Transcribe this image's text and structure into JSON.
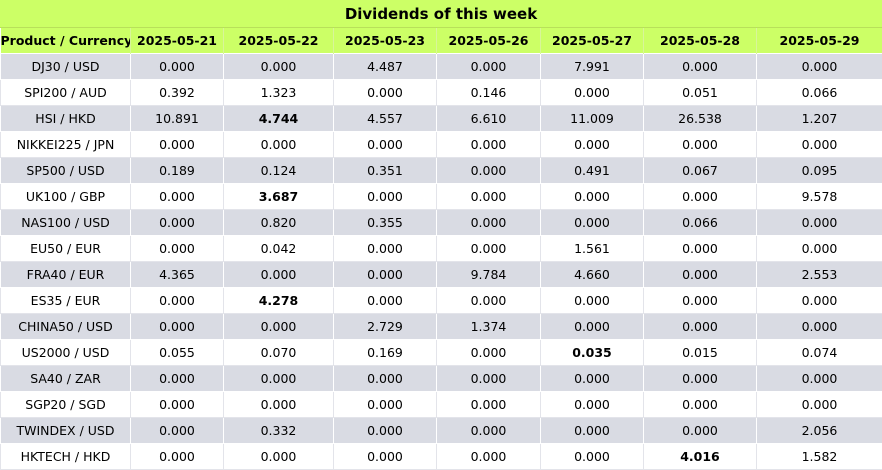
{
  "title": "Dividends of this week",
  "header": {
    "product_label": "Product / Currency",
    "dates": [
      "2025-05-21",
      "2025-05-22",
      "2025-05-23",
      "2025-05-26",
      "2025-05-27",
      "2025-05-28",
      "2025-05-29"
    ]
  },
  "rows": [
    {
      "product": "DJ30 / USD",
      "values": [
        "0.000",
        "0.000",
        "4.487",
        "0.000",
        "7.991",
        "0.000",
        "0.000"
      ],
      "bold": []
    },
    {
      "product": "SPI200 / AUD",
      "values": [
        "0.392",
        "1.323",
        "0.000",
        "0.146",
        "0.000",
        "0.051",
        "0.066"
      ],
      "bold": []
    },
    {
      "product": "HSI / HKD",
      "values": [
        "10.891",
        "4.744",
        "4.557",
        "6.610",
        "11.009",
        "26.538",
        "1.207"
      ],
      "bold": [
        1
      ]
    },
    {
      "product": "NIKKEI225 / JPN",
      "values": [
        "0.000",
        "0.000",
        "0.000",
        "0.000",
        "0.000",
        "0.000",
        "0.000"
      ],
      "bold": []
    },
    {
      "product": "SP500 / USD",
      "values": [
        "0.189",
        "0.124",
        "0.351",
        "0.000",
        "0.491",
        "0.067",
        "0.095"
      ],
      "bold": []
    },
    {
      "product": "UK100 / GBP",
      "values": [
        "0.000",
        "3.687",
        "0.000",
        "0.000",
        "0.000",
        "0.000",
        "9.578"
      ],
      "bold": [
        1
      ]
    },
    {
      "product": "NAS100 / USD",
      "values": [
        "0.000",
        "0.820",
        "0.355",
        "0.000",
        "0.000",
        "0.066",
        "0.000"
      ],
      "bold": []
    },
    {
      "product": "EU50 / EUR",
      "values": [
        "0.000",
        "0.042",
        "0.000",
        "0.000",
        "1.561",
        "0.000",
        "0.000"
      ],
      "bold": []
    },
    {
      "product": "FRA40 / EUR",
      "values": [
        "4.365",
        "0.000",
        "0.000",
        "9.784",
        "4.660",
        "0.000",
        "2.553"
      ],
      "bold": []
    },
    {
      "product": "ES35 / EUR",
      "values": [
        "0.000",
        "4.278",
        "0.000",
        "0.000",
        "0.000",
        "0.000",
        "0.000"
      ],
      "bold": [
        1
      ]
    },
    {
      "product": "CHINA50 / USD",
      "values": [
        "0.000",
        "0.000",
        "2.729",
        "1.374",
        "0.000",
        "0.000",
        "0.000"
      ],
      "bold": []
    },
    {
      "product": "US2000 / USD",
      "values": [
        "0.055",
        "0.070",
        "0.169",
        "0.000",
        "0.035",
        "0.015",
        "0.074"
      ],
      "bold": [
        4
      ]
    },
    {
      "product": "SA40 / ZAR",
      "values": [
        "0.000",
        "0.000",
        "0.000",
        "0.000",
        "0.000",
        "0.000",
        "0.000"
      ],
      "bold": []
    },
    {
      "product": "SGP20 / SGD",
      "values": [
        "0.000",
        "0.000",
        "0.000",
        "0.000",
        "0.000",
        "0.000",
        "0.000"
      ],
      "bold": []
    },
    {
      "product": "TWINDEX / USD",
      "values": [
        "0.000",
        "0.332",
        "0.000",
        "0.000",
        "0.000",
        "0.000",
        "2.056"
      ],
      "bold": []
    },
    {
      "product": "HKTECH / HKD",
      "values": [
        "0.000",
        "0.000",
        "0.000",
        "0.000",
        "0.000",
        "4.016",
        "1.582"
      ],
      "bold": [
        5
      ]
    }
  ],
  "colors": {
    "header_bg": "#ccff66",
    "row_alt_bg": "#d9dbe3",
    "row_bg": "#ffffff"
  }
}
